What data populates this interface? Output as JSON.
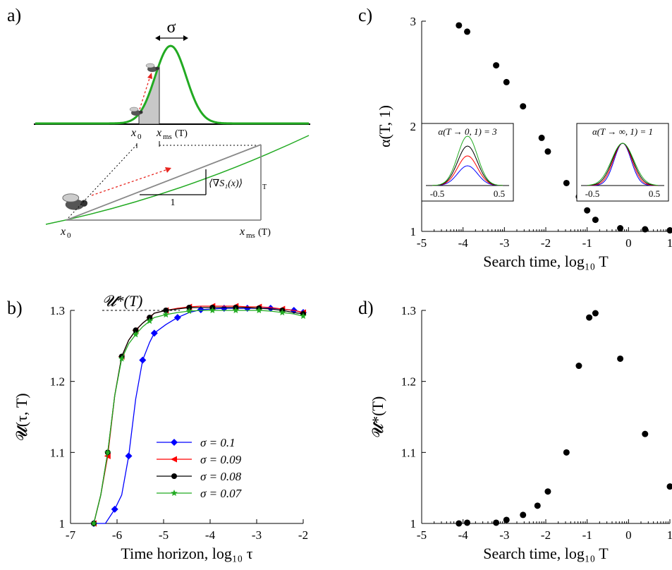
{
  "figure": {
    "panel_labels": [
      "a)",
      "b)",
      "c)",
      "d)"
    ]
  },
  "panel_a": {
    "sigma_label": "σ",
    "x0_label": "x",
    "x0_sub": "0",
    "xms_label": "x",
    "xms_sub": "ms",
    "xms_arg": "(T)",
    "gradient_label": "⟨∇S₁(x)⟩",
    "gradient_sub": "T",
    "slope_run_label": "1",
    "colors": {
      "gaussian": "#22aa22",
      "arrow": "#e8251f",
      "shade": "#c8c8c8",
      "line": "#888888"
    }
  },
  "chart_data": [
    {
      "id": "b",
      "type": "line",
      "xlabel": "Time horizon, log₁₀ τ",
      "ylabel": "𝓤(τ, T)",
      "xlim": [
        -7,
        -2
      ],
      "ylim": [
        1,
        1.3
      ],
      "xticks": [
        -7,
        -6,
        -5,
        -4,
        -3,
        -2
      ],
      "xtick_labels": [
        "-7",
        "-6",
        "-5",
        "-4",
        "-3",
        "-2"
      ],
      "yticks": [
        1,
        1.1,
        1.2,
        1.3
      ],
      "ytick_labels": [
        "1",
        "1.1",
        "1.2",
        "1.3"
      ],
      "annotation": "𝓤*(T)",
      "legend_position": "lower-right",
      "series": [
        {
          "name": "σ = 0.1",
          "color": "#0000ff",
          "marker": "diamond",
          "x": [
            -6.5,
            -6.25,
            -6.05,
            -5.9,
            -5.75,
            -5.6,
            -5.45,
            -5.3,
            -5.2,
            -4.95,
            -4.7,
            -4.45,
            -4.2,
            -3.95,
            -3.7,
            -3.45,
            -3.2,
            -2.95,
            -2.7,
            -2.45,
            -2.2,
            -2.0
          ],
          "y": [
            1.0,
            1.0,
            1.02,
            1.04,
            1.095,
            1.175,
            1.23,
            1.255,
            1.268,
            1.28,
            1.29,
            1.297,
            1.301,
            1.302,
            1.303,
            1.303,
            1.303,
            1.303,
            1.303,
            1.302,
            1.3,
            1.297
          ]
        },
        {
          "name": "σ = 0.09",
          "color": "#ff0000",
          "marker": "triangle-left",
          "x": [
            -6.5,
            -6.35,
            -6.2,
            -6.05,
            -5.9,
            -5.75,
            -5.6,
            -5.45,
            -5.3,
            -5.2,
            -4.95,
            -4.7,
            -4.45,
            -4.2,
            -3.95,
            -3.7,
            -3.45,
            -3.2,
            -2.95,
            -2.7,
            -2.45,
            -2.2,
            -2.0
          ],
          "y": [
            1.0,
            1.04,
            1.095,
            1.18,
            1.235,
            1.258,
            1.272,
            1.282,
            1.29,
            1.296,
            1.3,
            1.303,
            1.305,
            1.306,
            1.306,
            1.306,
            1.306,
            1.305,
            1.305,
            1.304,
            1.302,
            1.3,
            1.297
          ]
        },
        {
          "name": "σ = 0.08",
          "color": "#000000",
          "marker": "circle",
          "x": [
            -6.5,
            -6.35,
            -6.2,
            -6.05,
            -5.9,
            -5.75,
            -5.6,
            -5.45,
            -5.3,
            -5.2,
            -4.95,
            -4.7,
            -4.45,
            -4.2,
            -3.95,
            -3.7,
            -3.45,
            -3.2,
            -2.95,
            -2.7,
            -2.45,
            -2.2,
            -2.0
          ],
          "y": [
            1.0,
            1.04,
            1.1,
            1.18,
            1.235,
            1.258,
            1.272,
            1.282,
            1.29,
            1.296,
            1.3,
            1.302,
            1.304,
            1.304,
            1.304,
            1.304,
            1.304,
            1.304,
            1.303,
            1.302,
            1.3,
            1.297,
            1.295
          ]
        },
        {
          "name": "σ = 0.07",
          "color": "#22aa22",
          "marker": "star",
          "x": [
            -6.5,
            -6.35,
            -6.2,
            -6.05,
            -5.9,
            -5.75,
            -5.6,
            -5.45,
            -5.3,
            -5.2,
            -4.95,
            -4.7,
            -4.45,
            -4.2,
            -3.95,
            -3.7,
            -3.45,
            -3.2,
            -2.95,
            -2.7,
            -2.45,
            -2.2,
            -2.0
          ],
          "y": [
            1.0,
            1.04,
            1.1,
            1.18,
            1.232,
            1.253,
            1.266,
            1.277,
            1.285,
            1.29,
            1.294,
            1.297,
            1.299,
            1.3,
            1.3,
            1.3,
            1.3,
            1.3,
            1.3,
            1.299,
            1.297,
            1.295,
            1.292
          ]
        }
      ]
    },
    {
      "id": "c",
      "type": "scatter",
      "xlabel": "Search time, log₁₀ T",
      "ylabel": "α(T, 1)",
      "xlim": [
        -5,
        1
      ],
      "ylim": [
        1,
        3
      ],
      "xticks": [
        -5,
        -4,
        -3,
        -2,
        -1,
        0,
        1
      ],
      "xtick_labels": [
        "-5",
        "-4",
        "-3",
        "-2",
        "-1",
        "0",
        "1"
      ],
      "yticks": [
        1,
        2,
        3
      ],
      "ytick_labels": [
        "1",
        "2",
        "3"
      ],
      "x": [
        -4.1,
        -3.9,
        -3.2,
        -2.95,
        -2.55,
        -2.1,
        -1.95,
        -1.5,
        -1.2,
        -1.0,
        -0.8,
        -0.2,
        0.4,
        1.0
      ],
      "y": [
        2.96,
        2.9,
        2.58,
        2.42,
        2.19,
        1.89,
        1.76,
        1.46,
        1.33,
        1.2,
        1.11,
        1.03,
        1.02,
        1.01
      ],
      "insets": [
        {
          "title": "α(T → 0, 1) = 3",
          "xtick_labels": [
            "-0.5",
            "0.5"
          ]
        },
        {
          "title": "α(T → ∞, 1) = 1",
          "xtick_labels": [
            "-0.5",
            "0.5"
          ]
        }
      ]
    },
    {
      "id": "d",
      "type": "scatter",
      "xlabel": "Search time, log₁₀ T",
      "ylabel": "𝓤*(T)",
      "xlim": [
        -5,
        1
      ],
      "ylim": [
        1,
        1.3
      ],
      "xticks": [
        -5,
        -4,
        -3,
        -2,
        -1,
        0,
        1
      ],
      "xtick_labels": [
        "-5",
        "-4",
        "-3",
        "-2",
        "-1",
        "0",
        "1"
      ],
      "yticks": [
        1,
        1.1,
        1.2,
        1.3
      ],
      "ytick_labels": [
        "1",
        "1.1",
        "1.2",
        "1.3"
      ],
      "x": [
        -4.1,
        -3.9,
        -3.2,
        -2.95,
        -2.55,
        -2.2,
        -1.95,
        -1.5,
        -1.2,
        -0.95,
        -0.8,
        -0.2,
        0.4,
        1.0
      ],
      "y": [
        1.0,
        1.001,
        1.001,
        1.005,
        1.012,
        1.025,
        1.045,
        1.1,
        1.222,
        1.29,
        1.296,
        1.232,
        1.126,
        1.052
      ]
    }
  ]
}
